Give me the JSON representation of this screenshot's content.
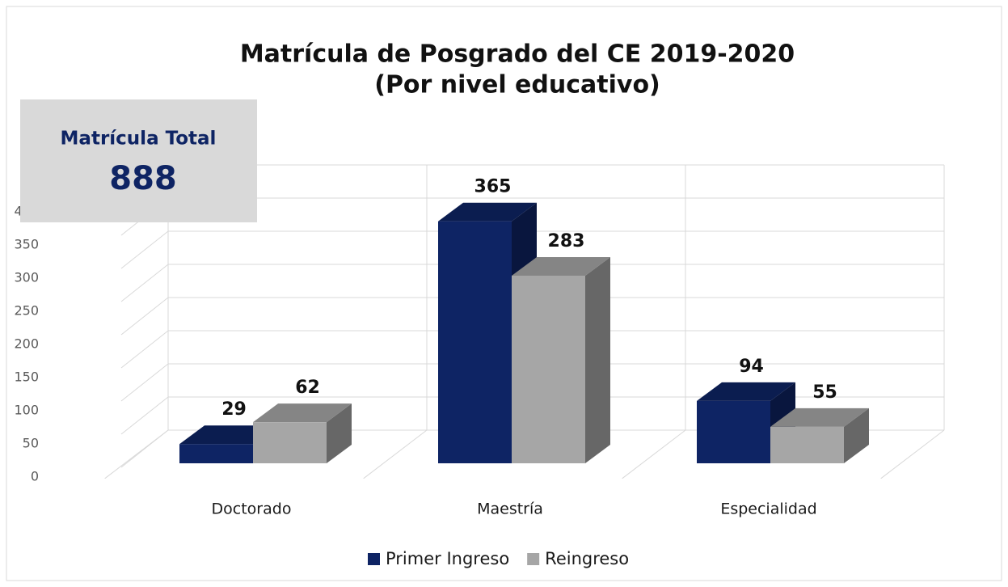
{
  "chart_data": {
    "type": "bar3d",
    "title": [
      "Matrícula de Posgrado del CE 2019-2020",
      "(Por nivel educativo)"
    ],
    "annotation": {
      "label": "Matrícula Total",
      "value": 888
    },
    "categories": [
      "Doctorado",
      "Maestría",
      "Especialidad"
    ],
    "series": [
      {
        "name": "Primer Ingreso",
        "color": "#0e2464",
        "values": [
          29,
          365,
          94
        ]
      },
      {
        "name": "Reingreso",
        "color": "#a6a6a6",
        "values": [
          62,
          283,
          55
        ]
      }
    ],
    "ylim": [
      0,
      400
    ],
    "yticks": [
      0,
      50,
      100,
      150,
      200,
      250,
      300,
      350,
      400
    ],
    "grid": true,
    "legend": "bottom"
  }
}
